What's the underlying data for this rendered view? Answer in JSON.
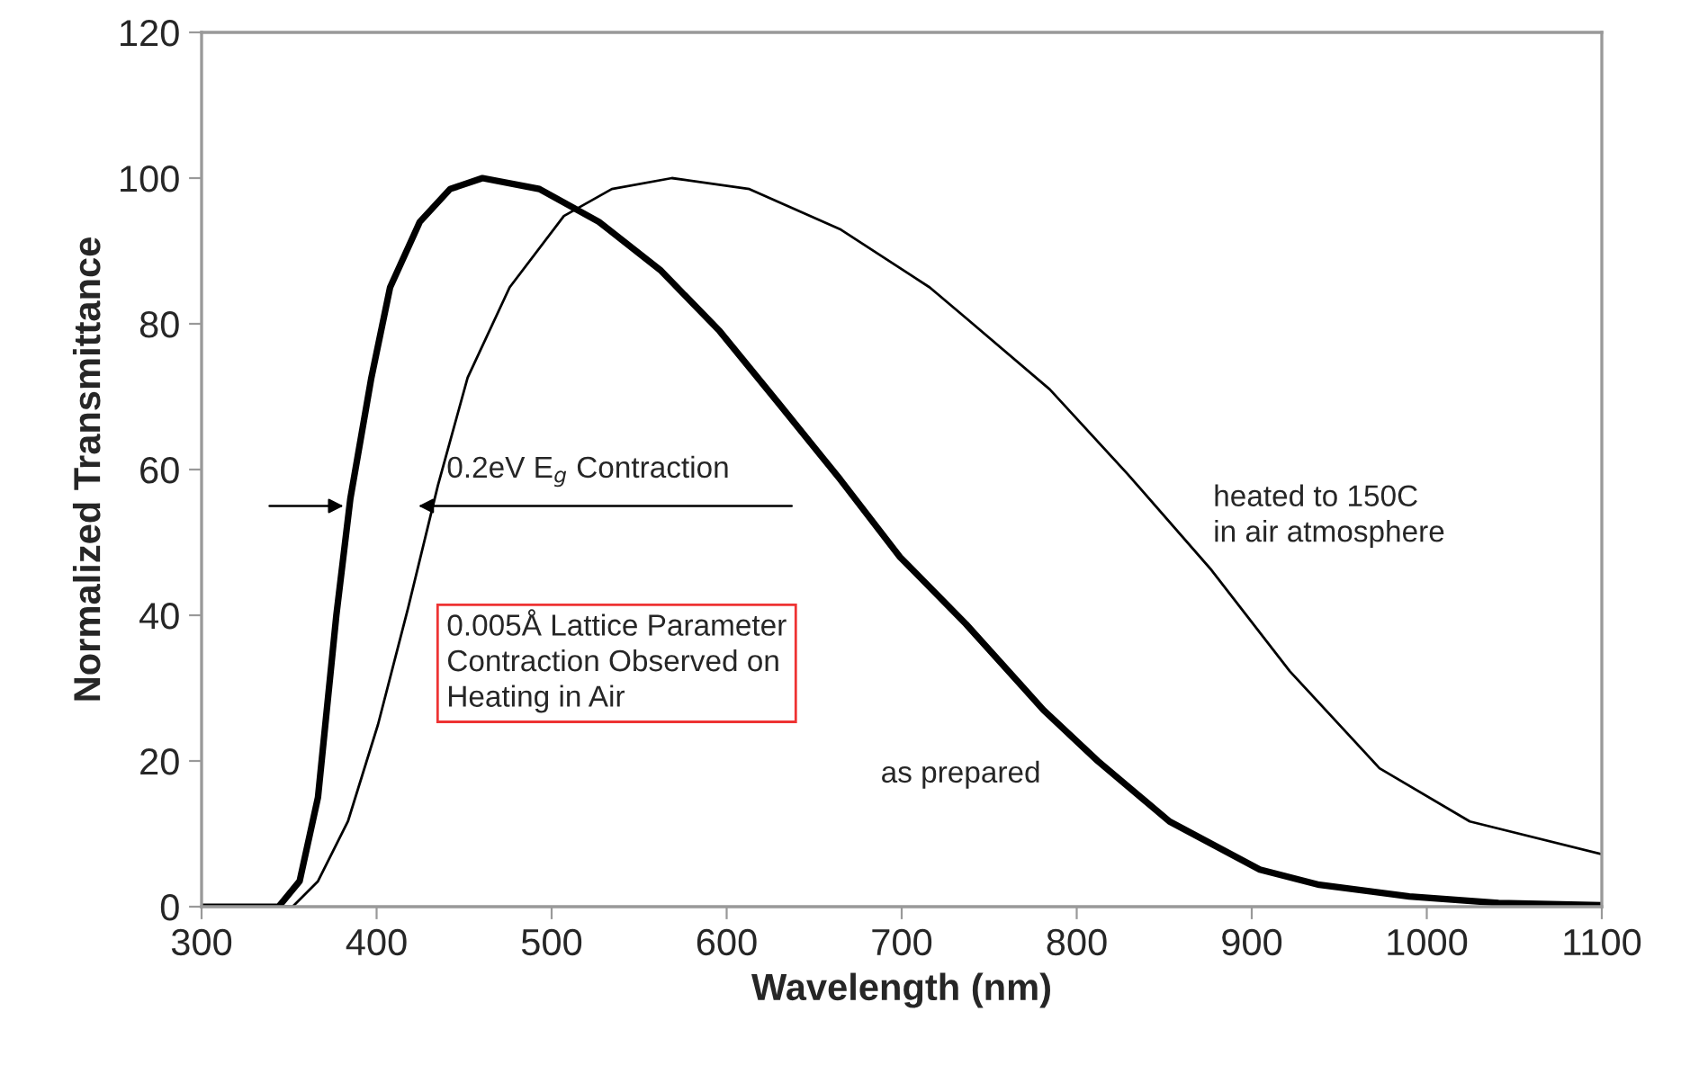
{
  "chart_data": {
    "type": "line",
    "xlabel": "Wavelength (nm)",
    "ylabel": "Normalized Transmittance",
    "xlim": [
      300,
      1100
    ],
    "xticks": [
      300,
      400,
      500,
      600,
      700,
      800,
      900,
      1000,
      1100
    ],
    "ylim": [
      0,
      120
    ],
    "yticks": [
      0,
      20,
      40,
      60,
      80,
      100,
      120
    ],
    "grid": false,
    "legend": false,
    "marker": "none",
    "series": [
      {
        "color": "#000000",
        "line_style": "solid",
        "x": [
          300,
          344,
          356,
          366.5,
          377,
          385,
          397,
          407.7,
          424.7,
          442,
          460.5,
          493,
          527,
          562,
          596,
          630,
          665,
          699,
          736.7,
          781,
          812,
          853,
          904.6,
          938.6,
          990,
          1041,
          1100
        ],
        "values": [
          0,
          0,
          3.5,
          15,
          40,
          56,
          72.6,
          85,
          94,
          98.5,
          100,
          98.5,
          94,
          87.4,
          79,
          69,
          58.6,
          48,
          38.8,
          27,
          20,
          11.7,
          5.1,
          3,
          1.4,
          0.5,
          0.2
        ]
      },
      {
        "color": "#000000",
        "line_style": "solid",
        "x": [
          300,
          352,
          366.5,
          383.6,
          400.8,
          418,
          435,
          452,
          476,
          507,
          534.4,
          568.7,
          613,
          664.7,
          716,
          736.7,
          784.6,
          829,
          877,
          921.8,
          973,
          1024.6,
          1100
        ],
        "values": [
          0,
          0,
          3.5,
          11.7,
          25,
          41,
          57.8,
          72.6,
          85,
          94.8,
          98.5,
          100,
          98.5,
          93,
          85,
          80.8,
          71,
          59.4,
          46.2,
          32.3,
          19,
          11.7,
          7.2
        ]
      }
    ],
    "annotations": [
      "0.2eV E$_{g}$ Contraction",
      "0.005Å Lattice Parameter\nContraction Observed on\nHeating in Air",
      "heated to 150C\nin air atmosphere",
      "as prepared"
    ]
  }
}
